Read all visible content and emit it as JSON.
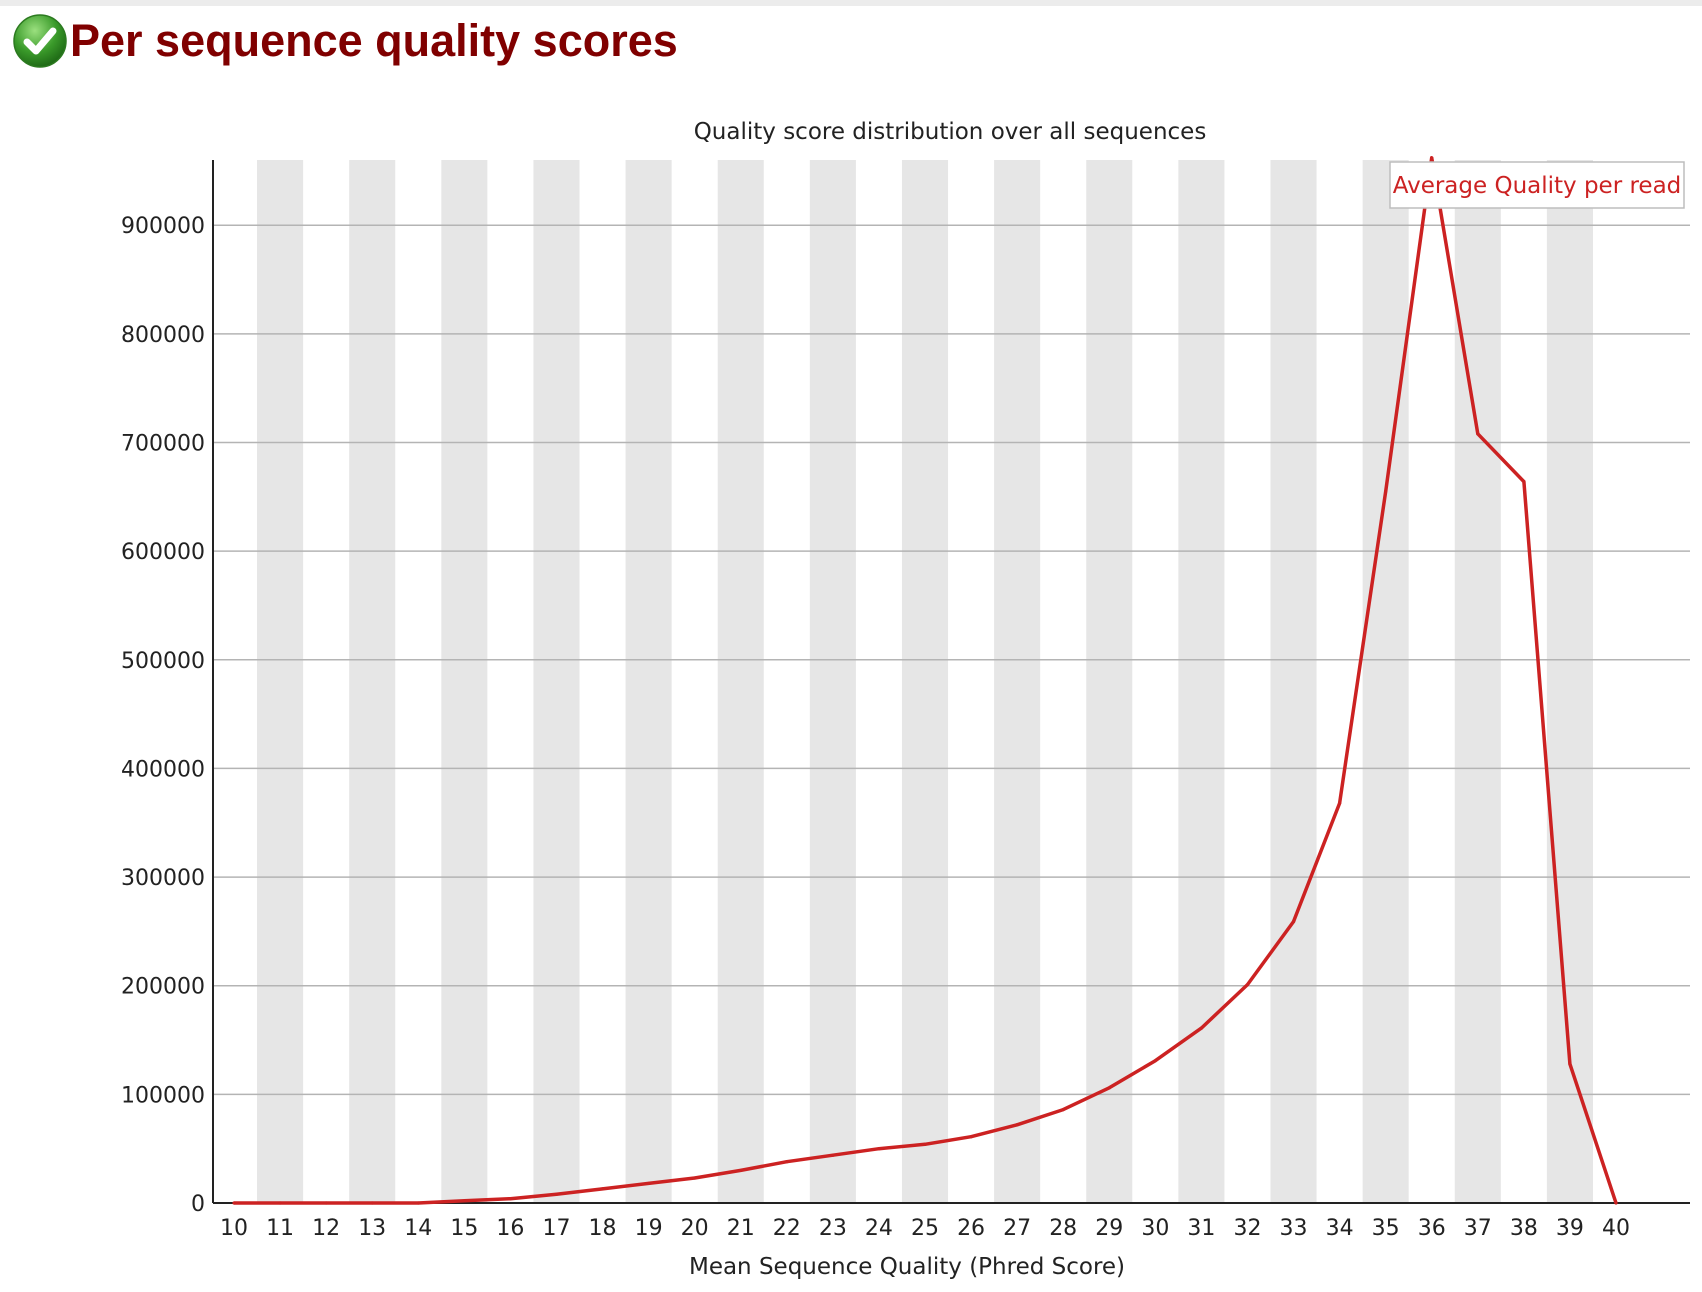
{
  "page": {
    "heading": "Per sequence quality scores",
    "status_icon": "check-circle-icon",
    "status": "pass"
  },
  "colors": {
    "heading": "#800000",
    "line": "#cc2222",
    "band": "#e6e6e6",
    "grid": "#b4b4b4",
    "pass_icon": "#3a9a2a"
  },
  "chart_data": {
    "type": "line",
    "title": "Quality score distribution over all sequences",
    "xlabel": "Mean Sequence Quality (Phred Score)",
    "ylabel": "",
    "x": [
      10,
      11,
      12,
      13,
      14,
      15,
      16,
      17,
      18,
      19,
      20,
      21,
      22,
      23,
      24,
      25,
      26,
      27,
      28,
      29,
      30,
      31,
      32,
      33,
      34,
      35,
      36,
      37,
      38,
      39,
      40
    ],
    "series": [
      {
        "name": "Average Quality per read",
        "values": [
          0,
          0,
          0,
          0,
          0,
          2000,
          4000,
          8000,
          13000,
          18000,
          23000,
          30000,
          38000,
          44000,
          50000,
          54000,
          61000,
          72000,
          86000,
          106000,
          131000,
          161000,
          201000,
          259000,
          368000,
          655000,
          962000,
          708000,
          664000,
          128000,
          0
        ]
      }
    ],
    "xlim": [
      10,
      40
    ],
    "ylim": [
      0,
      960000
    ],
    "yticks": [
      0,
      100000,
      200000,
      300000,
      400000,
      500000,
      600000,
      700000,
      800000,
      900000
    ],
    "grid": true,
    "alternating_bands": true,
    "legend_position": "top-right"
  }
}
